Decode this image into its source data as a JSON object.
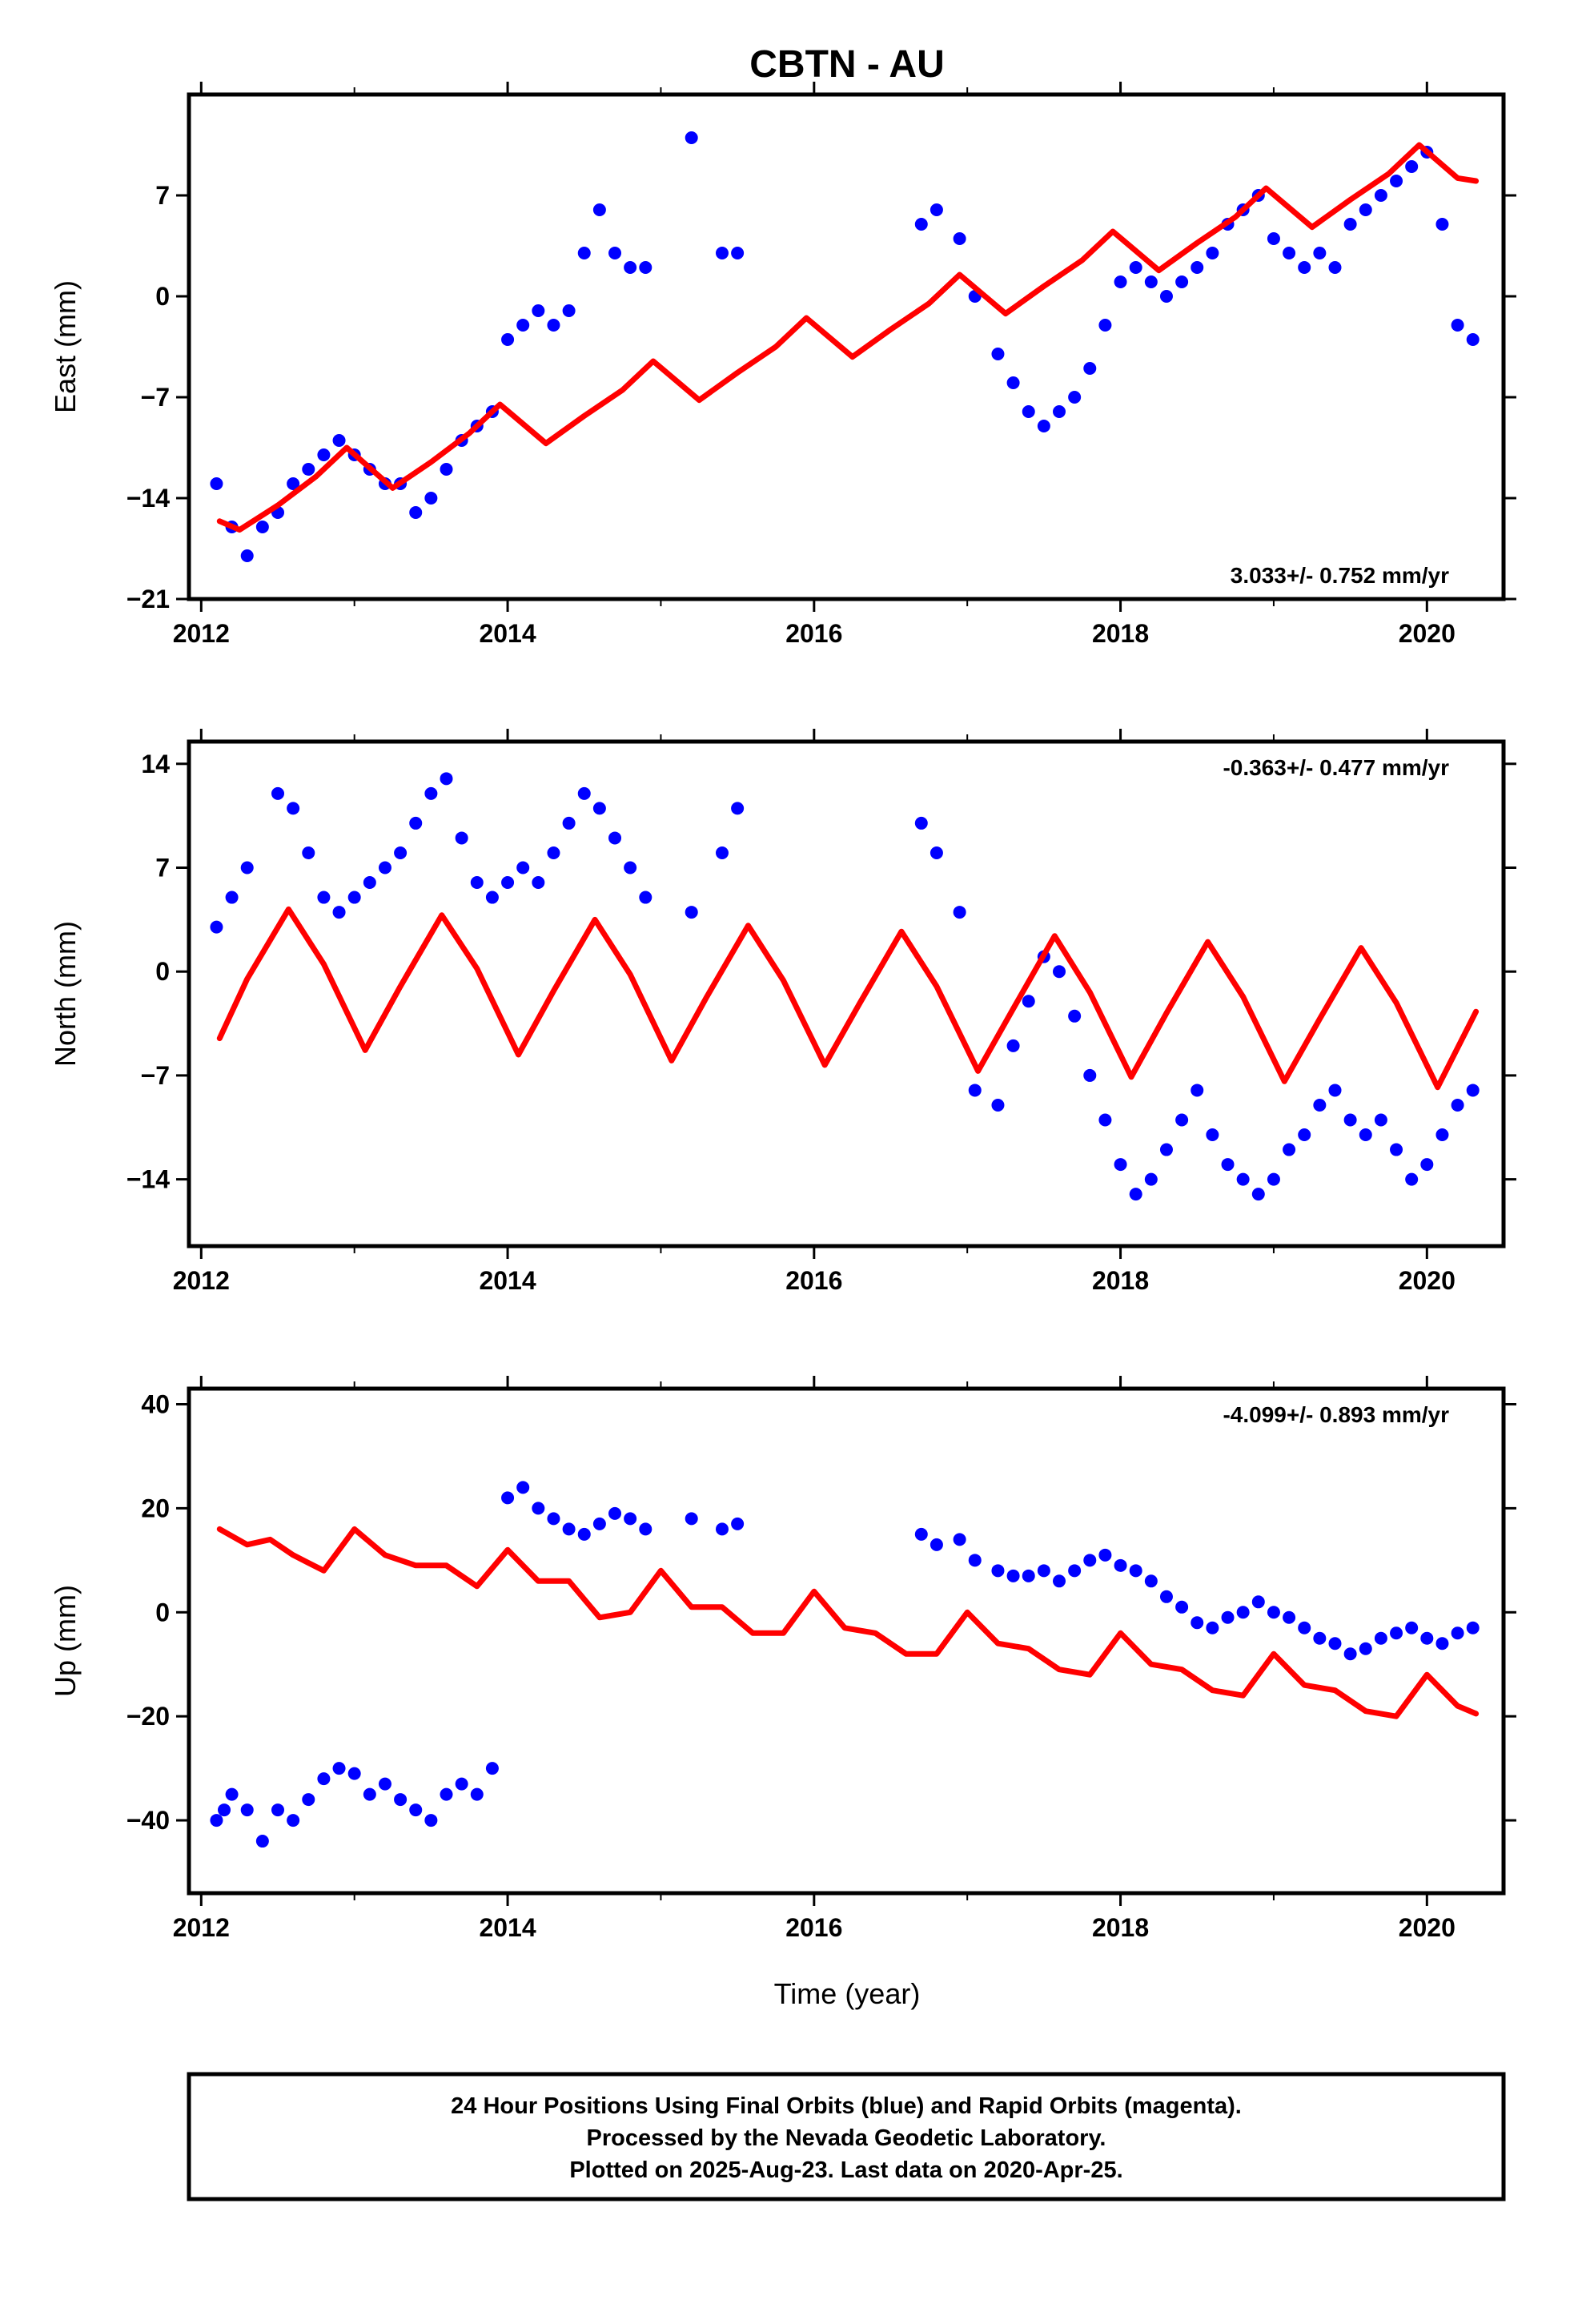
{
  "title": "CBTN - AU",
  "xlabel": "Time (year)",
  "footer": {
    "line1": "24 Hour Positions Using Final Orbits (blue) and Rapid Orbits (magenta).",
    "line2": "Processed by the Nevada Geodetic Laboratory.",
    "line3": "Plotted on 2025-Aug-23. Last data on 2020-Apr-25."
  },
  "colors": {
    "final_orbits": "#0000ff",
    "model": "#ff0000",
    "frame": "#000000"
  },
  "chart_data": [
    {
      "type": "scatter",
      "ylabel": "East (mm)",
      "rate": "3.033+/- 0.752 mm/yr",
      "xlim": [
        2011.92,
        2020.5
      ],
      "ylim": [
        -21,
        14
      ],
      "xticks": [
        2012,
        2014,
        2016,
        2018,
        2020
      ],
      "yticks": [
        -21,
        -14,
        -7,
        0,
        7
      ],
      "ytick_labels": [
        "−21",
        "−14",
        "−7",
        "0",
        "7"
      ],
      "series": [
        {
          "label_kind": "observations",
          "x": [
            2012.1,
            2012.2,
            2012.3,
            2012.4,
            2012.5,
            2012.6,
            2012.7,
            2012.8,
            2012.9,
            2013.0,
            2013.1,
            2013.2,
            2013.3,
            2013.4,
            2013.5,
            2013.6,
            2013.7,
            2013.8,
            2013.9,
            2014.0,
            2014.1,
            2014.2,
            2014.3,
            2014.4,
            2014.5,
            2014.6,
            2014.7,
            2014.8,
            2014.9,
            2015.2,
            2015.4,
            2015.5,
            2016.7,
            2016.8,
            2016.95,
            2017.05,
            2017.2,
            2017.3,
            2017.4,
            2017.5,
            2017.6,
            2017.7,
            2017.8,
            2017.9,
            2018.0,
            2018.1,
            2018.2,
            2018.3,
            2018.4,
            2018.5,
            2018.6,
            2018.7,
            2018.8,
            2018.9,
            2019.0,
            2019.1,
            2019.2,
            2019.3,
            2019.4,
            2019.5,
            2019.6,
            2019.7,
            2019.8,
            2019.9,
            2020.0,
            2020.1,
            2020.2,
            2020.3
          ],
          "y": [
            -13,
            -16,
            -18,
            -16,
            -15,
            -13,
            -12,
            -11,
            -10,
            -11,
            -12,
            -13,
            -13,
            -15,
            -14,
            -12,
            -10,
            -9,
            -8,
            -3,
            -2,
            -1,
            -2,
            -1,
            3,
            6,
            3,
            2,
            2,
            11,
            3,
            3,
            5,
            6,
            4,
            0,
            -4,
            -6,
            -8,
            -9,
            -8,
            -7,
            -5,
            -2,
            1,
            2,
            1,
            0,
            1,
            2,
            3,
            5,
            6,
            7,
            4,
            3,
            2,
            3,
            2,
            5,
            6,
            7,
            8,
            9,
            10,
            5,
            -2,
            -3
          ]
        },
        {
          "label_kind": "model",
          "x": [
            2012.12,
            2012.25,
            2012.5,
            2012.75,
            2012.95,
            2013.25,
            2013.5,
            2013.75,
            2013.95,
            2014.25,
            2014.5,
            2014.75,
            2014.95,
            2015.25,
            2015.5,
            2015.75,
            2015.95,
            2016.25,
            2016.5,
            2016.75,
            2016.95,
            2017.25,
            2017.5,
            2017.75,
            2017.95,
            2018.25,
            2018.5,
            2018.75,
            2018.95,
            2019.25,
            2019.5,
            2019.75,
            2019.95,
            2020.2,
            2020.32
          ],
          "y": [
            -15.6,
            -16.2,
            -14.5,
            -12.5,
            -10.5,
            -13.3,
            -11.5,
            -9.5,
            -7.5,
            -10.2,
            -8.3,
            -6.5,
            -4.5,
            -7.2,
            -5.3,
            -3.5,
            -1.5,
            -4.2,
            -2.3,
            -0.5,
            1.5,
            -1.2,
            0.7,
            2.5,
            4.5,
            1.8,
            3.7,
            5.5,
            7.5,
            4.8,
            6.7,
            8.5,
            10.5,
            8.2,
            8.0
          ]
        }
      ]
    },
    {
      "type": "scatter",
      "ylabel": "North (mm)",
      "rate": "-0.363+/- 0.477 mm/yr",
      "xlim": [
        2011.92,
        2020.5
      ],
      "ylim": [
        -18.5,
        15.5
      ],
      "xticks": [
        2012,
        2014,
        2016,
        2018,
        2020
      ],
      "yticks": [
        -14,
        -7,
        0,
        7,
        14
      ],
      "ytick_labels": [
        "−14",
        "−7",
        "0",
        "7",
        "14"
      ],
      "series": [
        {
          "label_kind": "observations",
          "x": [
            2012.1,
            2012.2,
            2012.3,
            2012.5,
            2012.6,
            2012.7,
            2012.8,
            2012.9,
            2013.0,
            2013.1,
            2013.2,
            2013.3,
            2013.4,
            2013.5,
            2013.6,
            2013.7,
            2013.8,
            2013.9,
            2014.0,
            2014.1,
            2014.2,
            2014.3,
            2014.4,
            2014.5,
            2014.6,
            2014.7,
            2014.8,
            2014.9,
            2015.2,
            2015.4,
            2015.5,
            2016.7,
            2016.8,
            2016.95,
            2017.05,
            2017.2,
            2017.3,
            2017.4,
            2017.5,
            2017.6,
            2017.7,
            2017.8,
            2017.9,
            2018.0,
            2018.1,
            2018.2,
            2018.3,
            2018.4,
            2018.5,
            2018.6,
            2018.7,
            2018.8,
            2018.9,
            2019.0,
            2019.1,
            2019.2,
            2019.3,
            2019.4,
            2019.5,
            2019.6,
            2019.7,
            2019.8,
            2019.9,
            2020.0,
            2020.1,
            2020.2,
            2020.3
          ],
          "y": [
            3,
            5,
            7,
            12,
            11,
            8,
            5,
            4,
            5,
            6,
            7,
            8,
            10,
            12,
            13,
            9,
            6,
            5,
            6,
            7,
            6,
            8,
            10,
            12,
            11,
            9,
            7,
            5,
            4,
            8,
            11,
            10,
            8,
            4,
            -8,
            -9,
            -5,
            -2,
            1,
            0,
            -3,
            -7,
            -10,
            -13,
            -15,
            -14,
            -12,
            -10,
            -8,
            -11,
            -13,
            -14,
            -15,
            -14,
            -12,
            -11,
            -9,
            -8,
            -10,
            -11,
            -10,
            -12,
            -14,
            -13,
            -11,
            -9,
            -8
          ]
        },
        {
          "label_kind": "model",
          "x": [
            2012.12,
            2012.3,
            2012.57,
            2012.8,
            2013.07,
            2013.3,
            2013.57,
            2013.8,
            2014.07,
            2014.3,
            2014.57,
            2014.8,
            2015.07,
            2015.3,
            2015.57,
            2015.8,
            2016.07,
            2016.3,
            2016.57,
            2016.8,
            2017.07,
            2017.3,
            2017.57,
            2017.8,
            2018.07,
            2018.3,
            2018.57,
            2018.8,
            2019.07,
            2019.3,
            2019.57,
            2019.8,
            2020.07,
            2020.32
          ],
          "y": [
            -4.5,
            -0.5,
            4.2,
            0.5,
            -5.3,
            -1.0,
            3.8,
            0.2,
            -5.6,
            -1.3,
            3.5,
            -0.2,
            -6.0,
            -1.7,
            3.1,
            -0.6,
            -6.3,
            -2.1,
            2.7,
            -1.0,
            -6.7,
            -2.5,
            2.4,
            -1.4,
            -7.1,
            -2.8,
            2.0,
            -1.7,
            -7.4,
            -3.2,
            1.6,
            -2.1,
            -7.8,
            -2.7
          ]
        }
      ]
    },
    {
      "type": "scatter",
      "ylabel": "Up (mm)",
      "rate": "-4.099+/- 0.893 mm/yr",
      "xlim": [
        2011.92,
        2020.5
      ],
      "ylim": [
        -54,
        43
      ],
      "xticks": [
        2012,
        2014,
        2016,
        2018,
        2020
      ],
      "yticks": [
        -40,
        -20,
        0,
        20,
        40
      ],
      "ytick_labels": [
        "−40",
        "−20",
        "0",
        "20",
        "40"
      ],
      "series": [
        {
          "label_kind": "observations",
          "x": [
            2012.1,
            2012.15,
            2012.2,
            2012.3,
            2012.4,
            2012.5,
            2012.6,
            2012.7,
            2012.8,
            2012.9,
            2013.0,
            2013.1,
            2013.2,
            2013.3,
            2013.4,
            2013.5,
            2013.6,
            2013.7,
            2013.8,
            2013.9,
            2014.0,
            2014.1,
            2014.2,
            2014.3,
            2014.4,
            2014.5,
            2014.6,
            2014.7,
            2014.8,
            2014.9,
            2015.2,
            2015.4,
            2015.5,
            2016.7,
            2016.8,
            2016.95,
            2017.05,
            2017.2,
            2017.3,
            2017.4,
            2017.5,
            2017.6,
            2017.7,
            2017.8,
            2017.9,
            2018.0,
            2018.1,
            2018.2,
            2018.3,
            2018.4,
            2018.5,
            2018.6,
            2018.7,
            2018.8,
            2018.9,
            2019.0,
            2019.1,
            2019.2,
            2019.3,
            2019.4,
            2019.5,
            2019.6,
            2019.7,
            2019.8,
            2019.9,
            2020.0,
            2020.1,
            2020.2,
            2020.3
          ],
          "y": [
            -40,
            -38,
            -35,
            -38,
            -44,
            -38,
            -40,
            -36,
            -32,
            -30,
            -31,
            -35,
            -33,
            -36,
            -38,
            -40,
            -35,
            -33,
            -35,
            -30,
            22,
            24,
            20,
            18,
            16,
            15,
            17,
            19,
            18,
            16,
            18,
            16,
            17,
            15,
            13,
            14,
            10,
            8,
            7,
            7,
            8,
            6,
            8,
            10,
            11,
            9,
            8,
            6,
            3,
            1,
            -2,
            -3,
            -1,
            0,
            2,
            0,
            -1,
            -3,
            -5,
            -6,
            -8,
            -7,
            -5,
            -4,
            -3,
            -5,
            -6,
            -4,
            -3
          ]
        },
        {
          "label_kind": "model",
          "x": [
            2012.12,
            2012.3,
            2012.45,
            2012.6,
            2012.8,
            2013.0,
            2013.2,
            2013.4,
            2013.6,
            2013.8,
            2014.0,
            2014.2,
            2014.4,
            2014.6,
            2014.8,
            2015.0,
            2015.2,
            2015.4,
            2015.6,
            2015.8,
            2016.0,
            2016.2,
            2016.4,
            2016.6,
            2016.8,
            2017.0,
            2017.2,
            2017.4,
            2017.6,
            2017.8,
            2018.0,
            2018.2,
            2018.4,
            2018.6,
            2018.8,
            2019.0,
            2019.2,
            2019.4,
            2019.6,
            2019.8,
            2020.0,
            2020.2,
            2020.32
          ],
          "y": [
            16,
            13,
            14,
            11,
            8,
            16,
            11,
            9,
            9,
            5,
            12,
            6,
            6,
            -1,
            0,
            8,
            1,
            1,
            -4,
            -4,
            4,
            -3,
            -4,
            -8,
            -8,
            0,
            -6,
            -7,
            -11,
            -12,
            -4,
            -10,
            -11,
            -15,
            -16,
            -8,
            -14,
            -15,
            -19,
            -20,
            -12,
            -18,
            -19.5
          ]
        }
      ]
    }
  ]
}
